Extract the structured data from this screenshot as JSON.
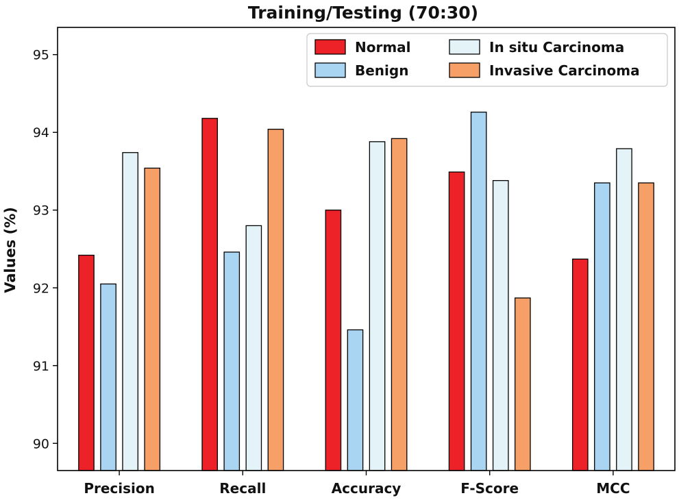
{
  "chart_data": {
    "type": "bar",
    "title": "Training/Testing (70:30)",
    "xlabel": "",
    "ylabel": "Values (%)",
    "ylim": [
      89.65,
      95.35
    ],
    "yticks": [
      "90",
      "91",
      "92",
      "93",
      "94",
      "95"
    ],
    "categories": [
      "Precision",
      "Recall",
      "Accuracy",
      "F-Score",
      "MCC"
    ],
    "legend_position": "top-right",
    "series": [
      {
        "name": "Normal",
        "color": "#ec2228",
        "values": [
          92.42,
          94.18,
          93.0,
          93.49,
          92.37
        ]
      },
      {
        "name": "Benign",
        "color": "#a9d5f2",
        "values": [
          92.05,
          92.46,
          91.46,
          94.26,
          93.35
        ]
      },
      {
        "name": "In situ Carcinoma",
        "color": "#e3f3f8",
        "values": [
          93.74,
          92.8,
          93.88,
          93.38,
          93.79
        ]
      },
      {
        "name": "Invasive Carcinoma",
        "color": "#f6a068",
        "values": [
          93.54,
          94.04,
          93.92,
          91.87,
          93.35
        ]
      }
    ]
  }
}
